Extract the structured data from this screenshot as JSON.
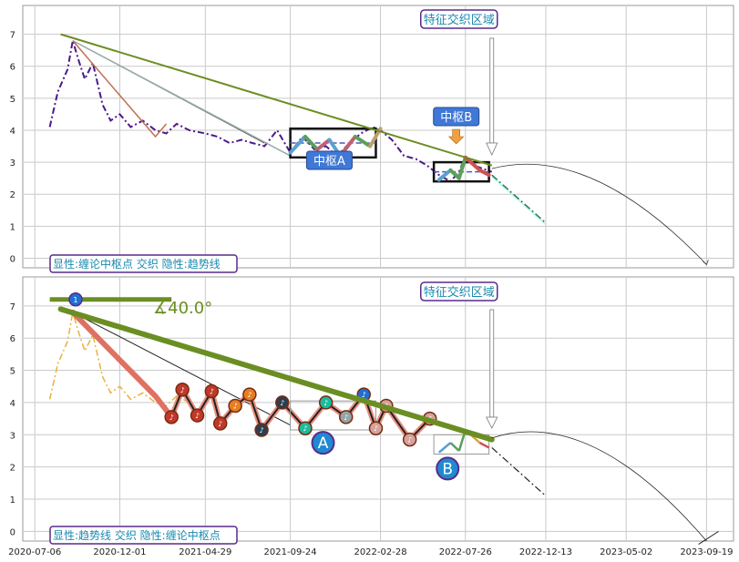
{
  "colors": {
    "grid": "#c9c9c9",
    "panel_border": "#9a9a9a",
    "price_top": "#4b1a8a",
    "price_bottom": "#e8b23c",
    "trend": "#6b8e23",
    "pivot_box": "#111111",
    "label_blue": "#3f78d6",
    "label_border": "#5a2a8a",
    "label_text_teal": "#1a8ab0",
    "forecast": "#2f6f6f"
  },
  "chart_data": [
    {
      "type": "line",
      "panel": "top",
      "legend_note": "显性:缠论中枢点 交织 隐性:趋势线",
      "annotations": [
        {
          "name": "feature-zone",
          "text": "特征交织区域",
          "x": "2022-09-10"
        },
        {
          "name": "pivot-a",
          "text": "中枢A",
          "x": "2021-12-01",
          "y": 3.6
        },
        {
          "name": "pivot-b",
          "text": "中枢B",
          "x": "2022-07-26",
          "y": 2.7
        }
      ],
      "ylim": [
        -0.3,
        7.9
      ],
      "yticks": [
        0,
        1,
        2,
        3,
        4,
        5,
        6,
        7
      ],
      "x_dates": [
        "2020-08-01",
        "2020-08-15",
        "2020-09-01",
        "2020-09-10",
        "2020-09-20",
        "2020-10-01",
        "2020-10-15",
        "2020-11-01",
        "2020-11-15",
        "2020-12-01",
        "2020-12-20",
        "2021-01-10",
        "2021-02-01",
        "2021-02-20",
        "2021-03-10",
        "2021-04-01",
        "2021-04-29",
        "2021-05-20",
        "2021-06-10",
        "2021-07-01",
        "2021-07-20",
        "2021-08-10",
        "2021-09-01",
        "2021-09-24",
        "2021-10-15",
        "2021-11-05",
        "2021-11-25",
        "2021-12-15",
        "2022-01-05",
        "2022-01-25",
        "2022-02-15",
        "2022-02-28",
        "2022-03-20",
        "2022-04-10",
        "2022-05-01",
        "2022-05-20",
        "2022-06-10",
        "2022-06-30",
        "2022-07-15",
        "2022-07-26",
        "2022-08-10",
        "2022-08-25",
        "2022-09-10"
      ],
      "price": [
        4.1,
        5.2,
        5.9,
        6.8,
        6.2,
        5.6,
        6.1,
        4.8,
        4.3,
        4.5,
        4.1,
        4.3,
        4.0,
        3.9,
        4.2,
        4.0,
        3.9,
        3.8,
        3.6,
        3.7,
        3.6,
        3.5,
        4.0,
        3.3,
        3.8,
        3.4,
        3.5,
        3.2,
        3.6,
        3.9,
        4.1,
        4.0,
        3.7,
        3.2,
        3.1,
        2.9,
        2.6,
        2.4,
        2.7,
        3.2,
        2.9,
        2.8,
        2.7
      ],
      "trendline": {
        "from": [
          "2020-08-20",
          7.0
        ],
        "to": [
          "2022-09-10",
          2.9
        ]
      },
      "forecast": {
        "from": [
          "2022-09-10",
          2.6
        ],
        "to": [
          "2022-12-13",
          1.1
        ]
      },
      "pivots": [
        {
          "name": "A",
          "x0": "2021-09-24",
          "x1": "2022-02-20",
          "y0": 3.15,
          "y1": 4.05
        },
        {
          "name": "B",
          "x0": "2022-06-01",
          "x1": "2022-09-05",
          "y0": 2.4,
          "y1": 3.0
        }
      ]
    },
    {
      "type": "line",
      "panel": "bottom",
      "legend_note": "显性:趋势线 交织 隐性:缠论中枢点",
      "annotations": [
        {
          "name": "feature-zone",
          "text": "特征交织区域",
          "x": "2022-09-10"
        },
        {
          "name": "angle",
          "text": "∡40.0°"
        },
        {
          "name": "pivot-a",
          "text": "A",
          "x": "2021-11-20",
          "y": 2.8
        },
        {
          "name": "pivot-b",
          "text": "B",
          "x": "2022-06-25",
          "y": 1.95
        }
      ],
      "ylim": [
        -0.3,
        7.9
      ],
      "yticks": [
        0,
        1,
        2,
        3,
        4,
        5,
        6,
        7
      ],
      "xticks": [
        "2020-07-06",
        "2020-12-01",
        "2021-04-29",
        "2021-09-24",
        "2022-02-28",
        "2022-07-26",
        "2022-12-13",
        "2023-05-02",
        "2023-09-19"
      ],
      "trendline": {
        "from": [
          "2020-08-20",
          6.9
        ],
        "to": [
          "2022-09-10",
          2.85
        ]
      },
      "forecast": {
        "from": [
          "2022-09-10",
          2.6
        ],
        "to": [
          "2022-12-13",
          1.1
        ]
      },
      "markers": [
        {
          "x": "2021-03-01",
          "y": 3.55,
          "color": "#c0392b"
        },
        {
          "x": "2021-03-20",
          "y": 4.4,
          "color": "#c0392b"
        },
        {
          "x": "2021-04-15",
          "y": 3.6,
          "color": "#c0392b"
        },
        {
          "x": "2021-05-10",
          "y": 4.35,
          "color": "#c0392b"
        },
        {
          "x": "2021-05-25",
          "y": 3.35,
          "color": "#c0392b"
        },
        {
          "x": "2021-06-20",
          "y": 3.9,
          "color": "#e67e22"
        },
        {
          "x": "2021-07-15",
          "y": 4.25,
          "color": "#e67e22"
        },
        {
          "x": "2021-08-05",
          "y": 3.15,
          "color": "#2c3e50"
        },
        {
          "x": "2021-09-10",
          "y": 4.0,
          "color": "#2c3e50"
        },
        {
          "x": "2021-10-20",
          "y": 3.2,
          "color": "#1abc9c"
        },
        {
          "x": "2021-11-25",
          "y": 4.0,
          "color": "#1abc9c"
        },
        {
          "x": "2021-12-30",
          "y": 3.55,
          "color": "#95a5a6"
        },
        {
          "x": "2022-01-30",
          "y": 4.25,
          "color": "#1f6fd1"
        },
        {
          "x": "2022-02-20",
          "y": 3.2,
          "color": "#d4a39c"
        },
        {
          "x": "2022-03-10",
          "y": 3.9,
          "color": "#d4a39c"
        },
        {
          "x": "2022-04-20",
          "y": 2.85,
          "color": "#d4a39c"
        },
        {
          "x": "2022-05-25",
          "y": 3.5,
          "color": "#d4a39c"
        }
      ]
    }
  ],
  "labels": {
    "feature_zone": "特征交织区域",
    "pivot_a_top": "中枢A",
    "pivot_b_top": "中枢B",
    "legend_top": "显性:缠论中枢点 交织 隐性:趋势线",
    "legend_bottom": "显性:趋势线 交织 隐性:缠论中枢点",
    "angle": "∡40.0°",
    "pivot_a_bottom": "A",
    "pivot_b_bottom": "B",
    "marker_1": "1"
  }
}
